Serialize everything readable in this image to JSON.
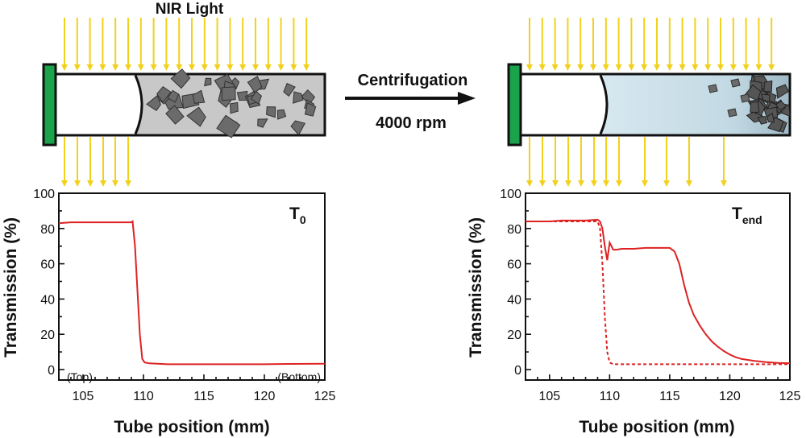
{
  "diagram": {
    "light_label": "NIR Light",
    "process_label": "Centrifugation",
    "speed_label": "4000 rpm"
  },
  "colors": {
    "light": "#f2d11c",
    "cap": "#1aa34a",
    "particle": "#6b6b6b",
    "dispersion": "#c8c8c8",
    "supernatant": "#cfe1ea",
    "curve": "#dd2222"
  },
  "chart_data": [
    {
      "type": "line",
      "title": "T",
      "title_sub": "0",
      "xlabel": "Tube position (mm)",
      "ylabel": "Transmission (%)",
      "xlim": [
        103,
        125
      ],
      "ylim": [
        0,
        100
      ],
      "xticks": [
        105,
        110,
        115,
        120,
        125
      ],
      "yticks": [
        0,
        20,
        40,
        60,
        80,
        100
      ],
      "annotations": [
        "(Top)",
        "(Bottom)"
      ],
      "series": [
        {
          "style": "solid",
          "x": [
            103,
            104,
            105,
            106,
            107,
            108,
            109,
            109.1,
            109.3,
            109.5,
            109.7,
            109.9,
            110.1,
            110.5,
            112,
            115,
            118,
            120,
            122,
            125
          ],
          "y": [
            83,
            83.5,
            83.5,
            83.5,
            83.5,
            83.5,
            83.5,
            84,
            70,
            45,
            20,
            6,
            4,
            3.5,
            3,
            3,
            3,
            3,
            3.2,
            3.3
          ]
        }
      ]
    },
    {
      "type": "line",
      "title": "T",
      "title_sub": "end",
      "xlabel": "Tube position (mm)",
      "ylabel": "Transmission (%)",
      "xlim": [
        103,
        125
      ],
      "ylim": [
        0,
        100
      ],
      "xticks": [
        105,
        110,
        115,
        120,
        125
      ],
      "yticks": [
        0,
        20,
        40,
        60,
        80,
        100
      ],
      "series": [
        {
          "style": "solid",
          "x": [
            103,
            104,
            105,
            106,
            107,
            108,
            109,
            109.2,
            109.4,
            109.6,
            109.8,
            110,
            110.3,
            110.6,
            111,
            112,
            113,
            114,
            115,
            115.4,
            115.8,
            116.2,
            116.6,
            117,
            117.5,
            118,
            118.5,
            119,
            119.5,
            120,
            120.5,
            121,
            122,
            123,
            124,
            125
          ],
          "y": [
            84,
            84,
            84,
            84.5,
            84.5,
            84.5,
            85,
            84,
            80,
            70,
            62,
            72,
            68,
            68,
            68.5,
            68.5,
            69,
            69,
            69,
            67,
            60,
            48,
            38,
            31,
            25,
            20,
            16,
            13,
            10.5,
            8.5,
            7,
            6,
            5,
            4.2,
            3.8,
            3.6
          ]
        },
        {
          "style": "dashed",
          "x": [
            103,
            105,
            107,
            108,
            109,
            109.2,
            109.4,
            109.6,
            109.8,
            110,
            110.3,
            111,
            113,
            116,
            120,
            125
          ],
          "y": [
            84,
            84,
            84,
            84,
            84,
            80,
            60,
            30,
            10,
            4,
            3,
            3,
            3,
            3,
            3,
            3
          ]
        }
      ]
    }
  ]
}
